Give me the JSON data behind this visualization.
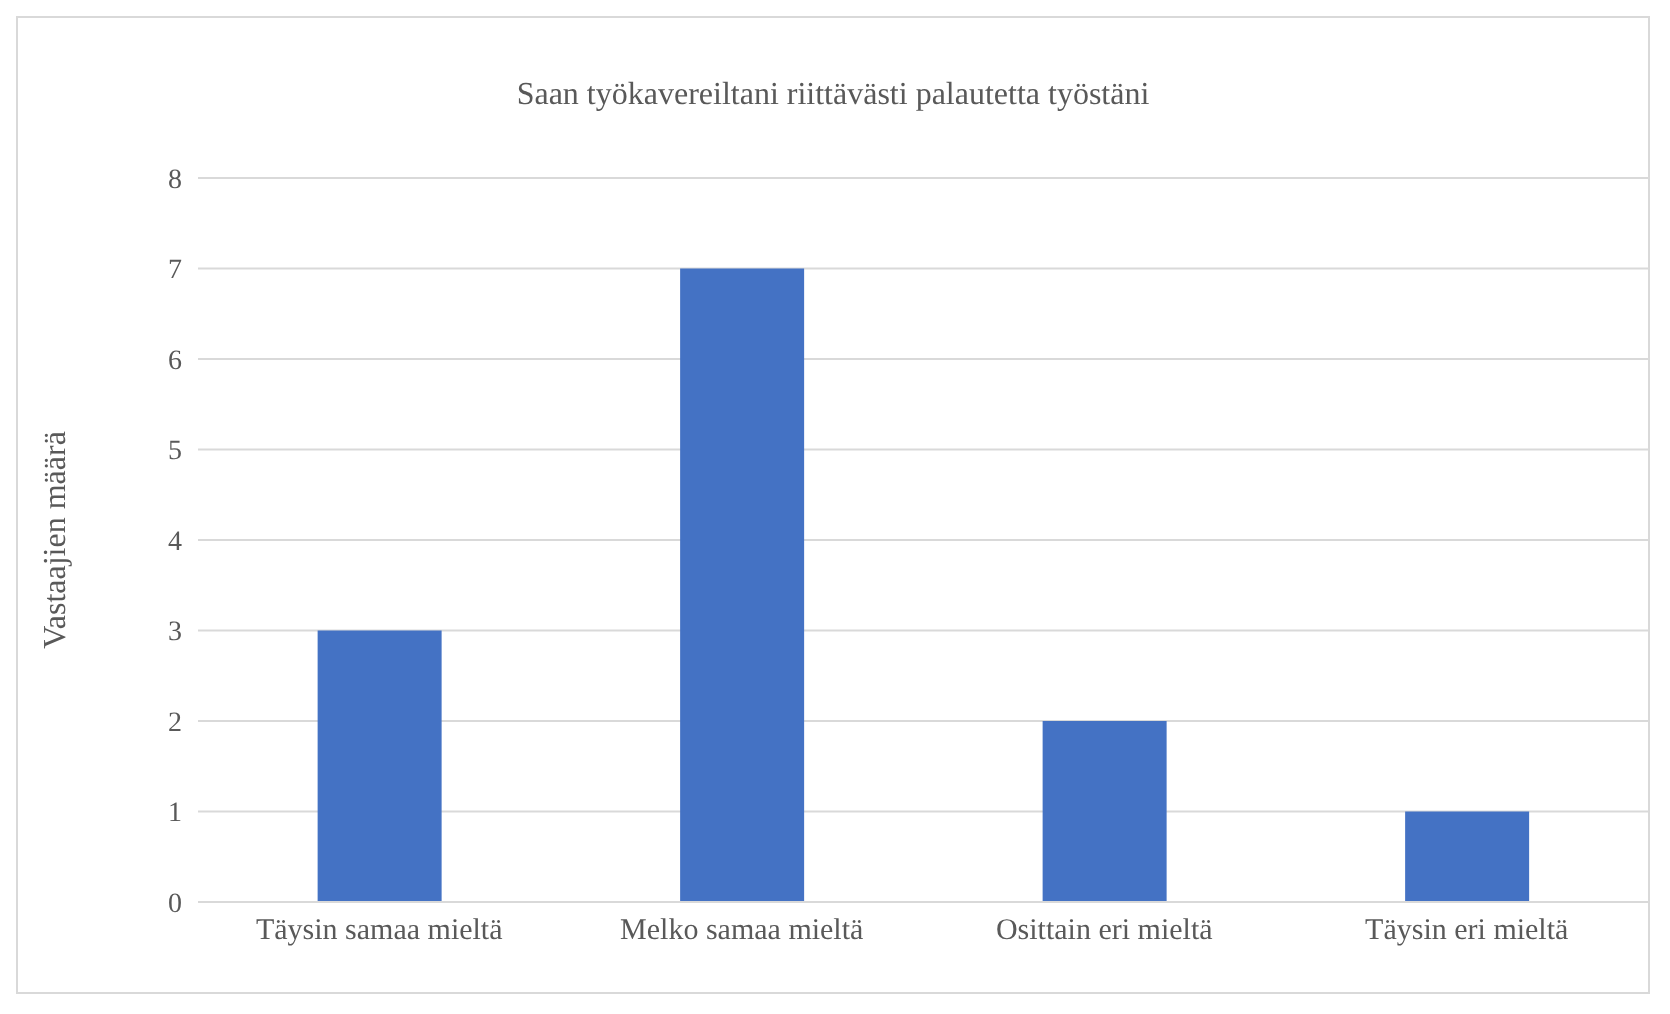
{
  "chart_data": {
    "type": "bar",
    "title": "Saan työkavereiltani riittävästi palautetta työstäni",
    "ylabel": "Vastaajien määrä",
    "categories": [
      "Täysin samaa mieltä",
      "Melko samaa mieltä",
      "Osittain eri mieltä",
      "Täysin eri mieltä"
    ],
    "values": [
      3,
      7,
      2,
      1
    ],
    "color": "#4472c4",
    "ylim": [
      0,
      8
    ],
    "yticks": [
      0,
      1,
      2,
      3,
      4,
      5,
      6,
      7,
      8
    ],
    "grid": "y"
  }
}
